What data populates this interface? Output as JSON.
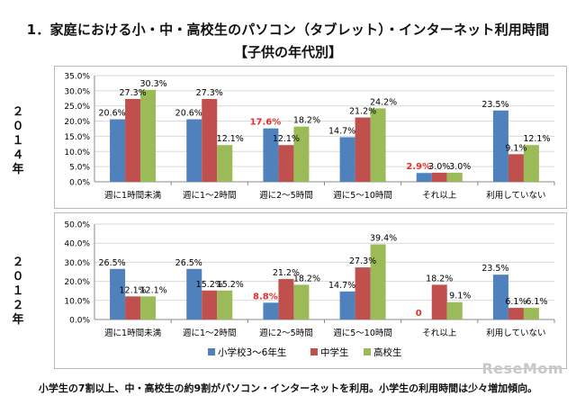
{
  "header": {
    "title": "1．家庭における小・中・高校生のパソコン（タブレット）・インターネット利用時間",
    "subtitle": "【子供の年代別】"
  },
  "footer": {
    "text": "小学生の7割以上、中・高校生の約9割がパソコン・インターネットを利用。小学生の利用時間は少々増加傾向。"
  },
  "watermark": "ReseMom",
  "colors": {
    "elementary": "#4f81bd",
    "junior": "#c0504d",
    "senior": "#9bbb59",
    "highlight": "#e0322c"
  },
  "chart_data": [
    {
      "type": "bar",
      "year_label": "２０１４年",
      "categories": [
        "週に1時間未満",
        "週に1～2時間",
        "週に2～5時間",
        "週に5～10時間",
        "それ以上",
        "利用していない"
      ],
      "ylim": [
        0,
        35
      ],
      "yticks": [
        "0.0%",
        "5.0%",
        "10.0%",
        "15.0%",
        "20.0%",
        "25.0%",
        "30.0%",
        "35.0%"
      ],
      "ytick_values": [
        0,
        5,
        10,
        15,
        20,
        25,
        30,
        35
      ],
      "series": [
        {
          "name": "小学校3～6年生",
          "values": [
            20.6,
            20.6,
            17.6,
            14.7,
            2.9,
            23.5
          ],
          "labels": [
            "20.6%",
            "20.6%",
            "17.6%",
            "14.7%",
            "2.9%",
            "23.5%"
          ]
        },
        {
          "name": "中学生",
          "values": [
            27.3,
            27.3,
            12.1,
            21.2,
            3.0,
            9.1
          ],
          "labels": [
            "27.3%",
            "27.3%",
            "12.1%",
            "21.2%",
            "3.0%",
            "9.1%"
          ]
        },
        {
          "name": "高校生",
          "values": [
            30.3,
            12.1,
            18.2,
            24.2,
            3.0,
            12.1
          ],
          "labels": [
            "30.3%",
            "12.1%",
            "18.2%",
            "24.2%",
            "3.0%",
            "12.1%"
          ]
        }
      ],
      "highlighted": [
        [
          0,
          2
        ],
        [
          0,
          4
        ]
      ],
      "legend": "none"
    },
    {
      "type": "bar",
      "year_label": "２０１２年",
      "categories": [
        "週に1時間未満",
        "週に1～2時間",
        "週に2～5時間",
        "週に5～10時間",
        "それ以上",
        "利用していない"
      ],
      "ylim": [
        0,
        50
      ],
      "yticks": [
        "0.0%",
        "10.0%",
        "20.0%",
        "30.0%",
        "40.0%",
        "50.0%"
      ],
      "ytick_values": [
        0,
        10,
        20,
        30,
        40,
        50
      ],
      "series": [
        {
          "name": "小学校3～6年生",
          "values": [
            26.5,
            26.5,
            8.8,
            14.7,
            0,
            23.5
          ],
          "labels": [
            "26.5%",
            "26.5%",
            "8.8%",
            "14.7%",
            "0",
            "23.5%"
          ]
        },
        {
          "name": "中学生",
          "values": [
            12.1,
            15.2,
            21.2,
            27.3,
            18.2,
            6.1
          ],
          "labels": [
            "12.1%",
            "15.2%",
            "21.2%",
            "27.3%",
            "18.2%",
            "6.1%"
          ]
        },
        {
          "name": "高校生",
          "values": [
            12.1,
            15.2,
            18.2,
            39.4,
            9.1,
            6.1
          ],
          "labels": [
            "12.1%",
            "15.2%",
            "18.2%",
            "39.4%",
            "9.1%",
            "6.1%"
          ]
        }
      ],
      "highlighted": [
        [
          0,
          2
        ],
        [
          0,
          4
        ]
      ],
      "legend": "bottom",
      "legend_entries": [
        "小学校3～6年生",
        "中学生",
        "高校生"
      ]
    }
  ]
}
